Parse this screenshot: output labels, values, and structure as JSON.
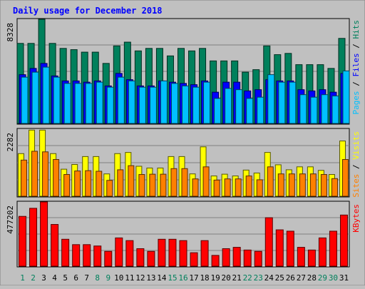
{
  "chart_data": [
    {
      "type": "bar",
      "title": "Daily usage for December 2018",
      "categories": [
        "1",
        "2",
        "3",
        "4",
        "5",
        "6",
        "7",
        "8",
        "9",
        "10",
        "11",
        "12",
        "13",
        "14",
        "15",
        "16",
        "17",
        "18",
        "19",
        "20",
        "21",
        "22",
        "23",
        "24",
        "25",
        "26",
        "27",
        "28",
        "29",
        "30",
        "31"
      ],
      "weekend_days": [
        "1",
        "2",
        "8",
        "9",
        "15",
        "16",
        "22",
        "23",
        "29",
        "30"
      ],
      "y_tick_label": "8328",
      "ylim": [
        0,
        8328
      ],
      "legend": [
        "Pages",
        "Files",
        "Hits"
      ],
      "series": [
        {
          "name": "Hits",
          "color": "#00805C",
          "values": [
            6400,
            6400,
            8328,
            6400,
            6000,
            5900,
            5700,
            5700,
            4800,
            6200,
            6500,
            5800,
            6000,
            6000,
            5400,
            6000,
            5800,
            6000,
            5000,
            5000,
            5000,
            4100,
            4300,
            6200,
            5500,
            5600,
            4700,
            4700,
            4700,
            4400,
            6800
          ]
        },
        {
          "name": "Files",
          "color": "#0000FF",
          "values": [
            3900,
            4400,
            4800,
            3800,
            3400,
            3400,
            3300,
            3400,
            3000,
            4000,
            3500,
            3000,
            3000,
            3400,
            3300,
            3200,
            3100,
            3400,
            2500,
            3300,
            3300,
            2600,
            2700,
            3500,
            3400,
            3400,
            2700,
            2600,
            2700,
            2500,
            4000
          ]
        },
        {
          "name": "Pages",
          "color": "#00C0FF",
          "values": [
            3700,
            4100,
            4500,
            3700,
            3200,
            3200,
            3200,
            3300,
            2900,
            3700,
            3400,
            2900,
            2900,
            3400,
            3200,
            3000,
            2900,
            3300,
            2000,
            2800,
            2700,
            2000,
            2100,
            3900,
            3300,
            3300,
            2300,
            2100,
            2300,
            2200,
            4200
          ]
        }
      ]
    },
    {
      "type": "bar",
      "y_tick_label": "2282",
      "ylim": [
        0,
        2282
      ],
      "legend": [
        "Sites",
        "Visits"
      ],
      "series": [
        {
          "name": "Visits",
          "color": "#FFFF00",
          "values": [
            1450,
            2250,
            2250,
            1450,
            920,
            1080,
            1350,
            1350,
            760,
            1450,
            1490,
            1020,
            960,
            960,
            1350,
            1350,
            760,
            1680,
            690,
            750,
            690,
            890,
            790,
            1490,
            1070,
            900,
            1000,
            1000,
            880,
            740,
            1880
          ]
        },
        {
          "name": "Sites",
          "color": "#FF8000",
          "values": [
            1230,
            1530,
            1510,
            1250,
            740,
            860,
            870,
            850,
            540,
            900,
            1040,
            740,
            750,
            750,
            940,
            940,
            590,
            1000,
            550,
            590,
            590,
            690,
            560,
            1000,
            760,
            760,
            760,
            760,
            740,
            600,
            1250
          ]
        }
      ]
    },
    {
      "type": "bar",
      "y_tick_label": "477202",
      "ylim": [
        0,
        477202
      ],
      "legend": [
        "KBytes"
      ],
      "series": [
        {
          "name": "KBytes",
          "color": "#FF0000",
          "values": [
            370000,
            430000,
            477202,
            310000,
            200000,
            160000,
            160000,
            150000,
            110000,
            210000,
            190000,
            130000,
            110000,
            200000,
            200000,
            190000,
            100000,
            190000,
            80000,
            130000,
            140000,
            120000,
            110000,
            360000,
            270000,
            260000,
            140000,
            120000,
            210000,
            260000,
            380000
          ]
        }
      ]
    }
  ]
}
